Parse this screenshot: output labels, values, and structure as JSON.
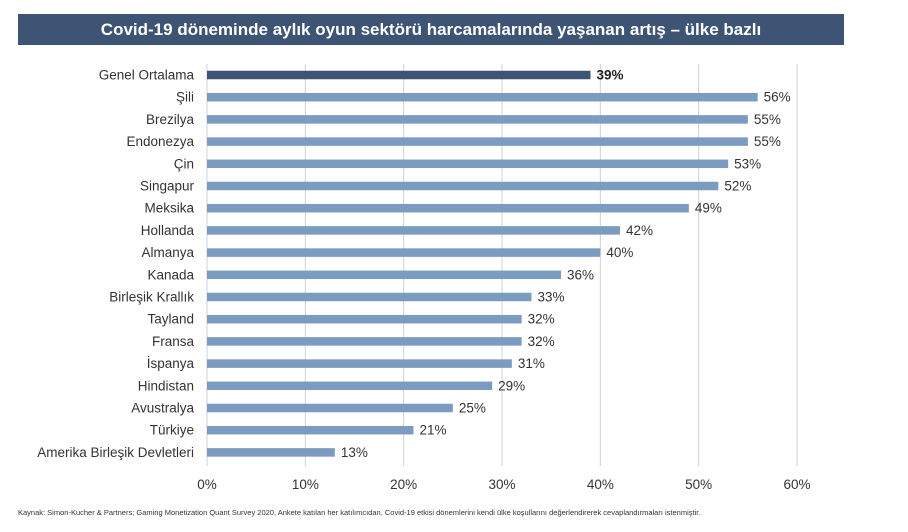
{
  "chart_data": {
    "type": "bar",
    "orientation": "horizontal",
    "title": "Covid-19 döneminde aylık oyun sektörü harcamalarında yaşanan artış – ülke bazlı",
    "categories": [
      "Genel Ortalama",
      "Şili",
      "Brezilya",
      "Endonezya",
      "Çin",
      "Singapur",
      "Meksika",
      "Hollanda",
      "Almanya",
      "Kanada",
      "Birleşik Krallık",
      "Tayland",
      "Fransa",
      "İspanya",
      "Hindistan",
      "Avustralya",
      "Türkiye",
      "Amerika Birleşik Devletleri"
    ],
    "values": [
      39,
      56,
      55,
      55,
      53,
      52,
      49,
      42,
      40,
      36,
      33,
      32,
      32,
      31,
      29,
      25,
      21,
      13
    ],
    "value_labels": [
      "39%",
      "56%",
      "55%",
      "55%",
      "53%",
      "52%",
      "49%",
      "42%",
      "40%",
      "36%",
      "33%",
      "32%",
      "32%",
      "31%",
      "29%",
      "25%",
      "21%",
      "13%"
    ],
    "highlight_index": 0,
    "xlim": [
      0,
      60
    ],
    "xticks": [
      "0%",
      "10%",
      "20%",
      "30%",
      "40%",
      "50%",
      "60%"
    ],
    "xlabel": "",
    "ylabel": "",
    "grid": "vertical",
    "colors": {
      "bar": "#7b9cc0",
      "highlight": "#3d5474",
      "grid": "#d0d0d0",
      "text": "#333333"
    }
  },
  "source": "Kaynak: Simon-Kucher & Partners; Gaming Monetization Quant Survey 2020, Ankete katılan her katılımcıdan, Covid-19 etkisi dönemlerini kendi ülke koşullarını değerlendirerek cevaplandırmaları istenmiştir."
}
